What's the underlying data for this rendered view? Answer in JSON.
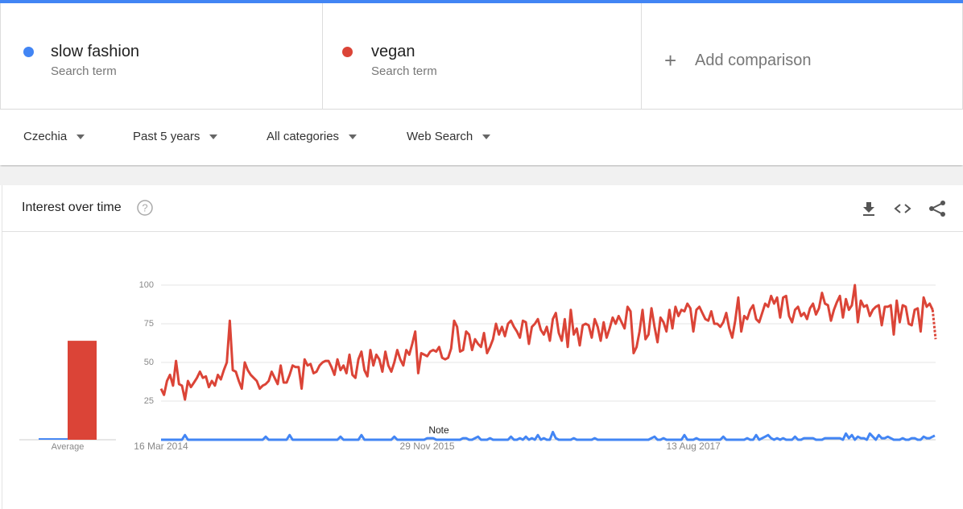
{
  "header": {
    "add_comparison": "Add comparison",
    "subtitles": [
      "Search term",
      "Search term"
    ]
  },
  "filters": [
    "Czechia",
    "Past 5 years",
    "All categories",
    "Web Search"
  ],
  "card_title": "Interest over time",
  "chart_data": {
    "type": "line",
    "series": [
      {
        "name": "slow fashion",
        "color": "#4285f4",
        "average": 1,
        "values": [
          0,
          0,
          0,
          0,
          0,
          0,
          0,
          0,
          3,
          0,
          0,
          0,
          0,
          0,
          0,
          0,
          0,
          0,
          0,
          0,
          0,
          0,
          0,
          0,
          0,
          0,
          0,
          0,
          0,
          0,
          0,
          0,
          0,
          0,
          0,
          2,
          0,
          0,
          0,
          0,
          0,
          0,
          0,
          3,
          0,
          0,
          0,
          0,
          0,
          0,
          0,
          0,
          0,
          0,
          0,
          0,
          0,
          0,
          0,
          0,
          2,
          0,
          0,
          0,
          0,
          0,
          0,
          3,
          0,
          0,
          0,
          0,
          0,
          0,
          0,
          0,
          0,
          0,
          2,
          0,
          0,
          0,
          0,
          0,
          0,
          0,
          0,
          0,
          0,
          1,
          1,
          1,
          0,
          0,
          0,
          0,
          0,
          0,
          0,
          0,
          0,
          1,
          1,
          0,
          0,
          1,
          2,
          0,
          0,
          0,
          1,
          0,
          0,
          0,
          0,
          0,
          0,
          2,
          0,
          0,
          1,
          0,
          2,
          0,
          1,
          0,
          3,
          0,
          1,
          0,
          0,
          5,
          1,
          0,
          0,
          0,
          0,
          0,
          1,
          0,
          0,
          0,
          0,
          0,
          0,
          1,
          0,
          0,
          0,
          0,
          0,
          0,
          0,
          0,
          0,
          0,
          0,
          0,
          0,
          0,
          0,
          0,
          0,
          0,
          1,
          2,
          0,
          0,
          1,
          0,
          0,
          0,
          0,
          0,
          0,
          3,
          0,
          0,
          0,
          1,
          0,
          0,
          0,
          0,
          0,
          0,
          0,
          0,
          2,
          0,
          0,
          0,
          0,
          0,
          0,
          0,
          1,
          0,
          0,
          3,
          0,
          1,
          2,
          3,
          1,
          0,
          1,
          0,
          1,
          0,
          0,
          0,
          2,
          0,
          0,
          1,
          1,
          1,
          1,
          0,
          0,
          0,
          1,
          1,
          1,
          1,
          1,
          1,
          0,
          4,
          1,
          3,
          0,
          2,
          1,
          1,
          0,
          4,
          2,
          0,
          3,
          1,
          1,
          2,
          1,
          0,
          0,
          0,
          1,
          0,
          0,
          1,
          1,
          0,
          0,
          2,
          1,
          1,
          2,
          3
        ]
      },
      {
        "name": "vegan",
        "color": "#db4437",
        "average": 64,
        "values": [
          33,
          29,
          38,
          42,
          35,
          51,
          36,
          35,
          26,
          38,
          34,
          37,
          40,
          44,
          40,
          41,
          34,
          38,
          35,
          42,
          39,
          45,
          50,
          77,
          45,
          44,
          38,
          33,
          50,
          45,
          42,
          40,
          38,
          33,
          35,
          36,
          38,
          44,
          40,
          36,
          48,
          37,
          37,
          42,
          48,
          47,
          47,
          33,
          52,
          48,
          49,
          43,
          44,
          48,
          50,
          51,
          51,
          47,
          42,
          52,
          45,
          48,
          43,
          55,
          42,
          40,
          52,
          57,
          45,
          41,
          58,
          48,
          55,
          52,
          44,
          57,
          48,
          44,
          50,
          58,
          52,
          48,
          58,
          55,
          62,
          70,
          43,
          56,
          55,
          54,
          57,
          58,
          57,
          60,
          53,
          52,
          53,
          59,
          77,
          73,
          57,
          58,
          70,
          68,
          58,
          65,
          62,
          60,
          69,
          56,
          60,
          65,
          75,
          68,
          73,
          67,
          75,
          77,
          73,
          70,
          66,
          77,
          76,
          62,
          73,
          75,
          78,
          71,
          68,
          73,
          64,
          78,
          82,
          69,
          64,
          78,
          60,
          84,
          68,
          72,
          61,
          74,
          75,
          74,
          66,
          78,
          73,
          64,
          76,
          66,
          72,
          79,
          75,
          80,
          76,
          72,
          86,
          83,
          56,
          60,
          70,
          84,
          65,
          68,
          85,
          73,
          63,
          79,
          76,
          70,
          84,
          72,
          86,
          80,
          84,
          83,
          88,
          85,
          70,
          84,
          86,
          82,
          78,
          77,
          83,
          75,
          75,
          73,
          76,
          82,
          72,
          66,
          77,
          92,
          70,
          80,
          78,
          84,
          87,
          78,
          76,
          82,
          88,
          86,
          93,
          88,
          92,
          79,
          92,
          93,
          80,
          76,
          84,
          86,
          80,
          82,
          78,
          85,
          88,
          81,
          85,
          95,
          88,
          87,
          77,
          84,
          89,
          93,
          79,
          91,
          84,
          87,
          100,
          76,
          90,
          86,
          87,
          80,
          84,
          86,
          87,
          74,
          86,
          86,
          87,
          68,
          90,
          76,
          87,
          86,
          75,
          74,
          84,
          85,
          70,
          92,
          86,
          88,
          84,
          65
        ]
      }
    ],
    "average_label": "Average",
    "annotation": "Note",
    "ylim": [
      0,
      100
    ],
    "yticks": [
      25,
      50,
      75,
      100
    ],
    "xlim": [
      0,
      259
    ],
    "xticks": [
      {
        "value": 0,
        "label": "16 Mar 2014"
      },
      {
        "value": 89,
        "label": "29 Nov 2015"
      },
      {
        "value": 178,
        "label": "13 Aug 2017"
      }
    ],
    "grid": true
  }
}
